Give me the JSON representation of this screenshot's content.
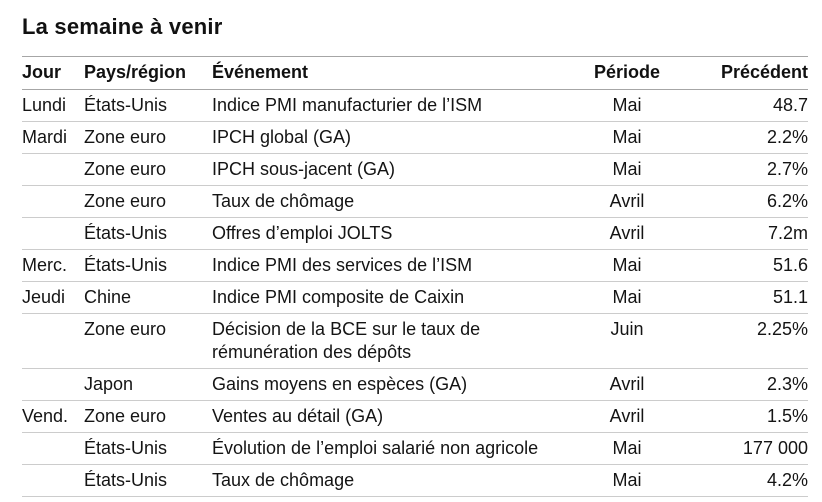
{
  "page": {
    "title": "La semaine à venir"
  },
  "table": {
    "headers": {
      "day": "Jour",
      "region": "Pays/région",
      "event": "Événement",
      "period": "Période",
      "previous": "Précédent"
    },
    "rows": [
      {
        "day": "Lundi",
        "region": "États-Unis",
        "event": "Indice PMI manufacturier de l’ISM",
        "period": "Mai",
        "previous": "48.7"
      },
      {
        "day": "Mardi",
        "region": "Zone euro",
        "event": "IPCH global (GA)",
        "period": "Mai",
        "previous": "2.2%"
      },
      {
        "day": "",
        "region": "Zone euro",
        "event": "IPCH sous-jacent (GA)",
        "period": "Mai",
        "previous": "2.7%"
      },
      {
        "day": "",
        "region": "Zone euro",
        "event": "Taux de chômage",
        "period": "Avril",
        "previous": "6.2%"
      },
      {
        "day": "",
        "region": "États-Unis",
        "event": "Offres d’emploi JOLTS",
        "period": "Avril",
        "previous": "7.2m"
      },
      {
        "day": "Merc.",
        "region": "États-Unis",
        "event": "Indice PMI des services de l’ISM",
        "period": "Mai",
        "previous": "51.6"
      },
      {
        "day": "Jeudi",
        "region": "Chine",
        "event": "Indice PMI composite de Caixin",
        "period": "Mai",
        "previous": "51.1"
      },
      {
        "day": "",
        "region": "Zone euro",
        "event": "Décision de la BCE sur le taux de rémunération des dépôts",
        "period": "Juin",
        "previous": "2.25%"
      },
      {
        "day": "",
        "region": "Japon",
        "event": "Gains moyens en espèces (GA)",
        "period": "Avril",
        "previous": "2.3%"
      },
      {
        "day": "Vend.",
        "region": "Zone euro",
        "event": "Ventes au détail (GA)",
        "period": "Avril",
        "previous": "1.5%"
      },
      {
        "day": "",
        "region": "États-Unis",
        "event": "Évolution de l’emploi salarié non agricole",
        "period": "Mai",
        "previous": "177 000"
      },
      {
        "day": "",
        "region": "États-Unis",
        "event": "Taux de chômage",
        "period": "Mai",
        "previous": "4.2%"
      }
    ]
  }
}
